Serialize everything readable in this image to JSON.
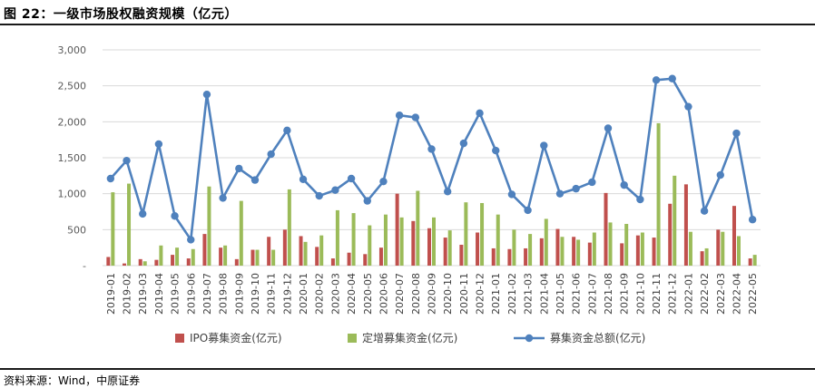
{
  "figure_title": "图 22：一级市场股权融资规模（亿元）",
  "source": "资料来源：Wind，中原证券",
  "chart_data": {
    "type": "bar",
    "categories": [
      "2019-01",
      "2019-02",
      "2019-03",
      "2019-04",
      "2019-05",
      "2019-06",
      "2019-07",
      "2019-08",
      "2019-09",
      "2019-10",
      "2019-11",
      "2019-12",
      "2020-01",
      "2020-02",
      "2020-03",
      "2020-04",
      "2020-05",
      "2020-06",
      "2020-07",
      "2020-08",
      "2020-09",
      "2020-10",
      "2020-11",
      "2020-12",
      "2021-01",
      "2021-02",
      "2021-03",
      "2021-04",
      "2021-05",
      "2021-06",
      "2021-07",
      "2021-08",
      "2021-09",
      "2021-10",
      "2021-11",
      "2021-12",
      "2022-01",
      "2022-02",
      "2022-03",
      "2022-04",
      "2022-05"
    ],
    "series": [
      {
        "name": "IPO募集资金(亿元)",
        "kind": "bar",
        "color": "#c0504d",
        "values": [
          120,
          30,
          90,
          80,
          150,
          100,
          440,
          250,
          90,
          220,
          400,
          500,
          410,
          260,
          100,
          180,
          160,
          250,
          1000,
          620,
          520,
          390,
          290,
          460,
          240,
          230,
          240,
          380,
          510,
          400,
          320,
          1010,
          310,
          420,
          390,
          860,
          1130,
          200,
          500,
          830,
          100
        ]
      },
      {
        "name": "定增募集资金(亿元)",
        "kind": "bar",
        "color": "#9bbb59",
        "values": [
          1020,
          1140,
          60,
          280,
          250,
          230,
          1100,
          280,
          900,
          220,
          220,
          1060,
          330,
          420,
          770,
          730,
          560,
          710,
          670,
          1040,
          670,
          490,
          880,
          870,
          710,
          500,
          440,
          650,
          400,
          360,
          460,
          600,
          580,
          460,
          1980,
          1250,
          470,
          240,
          470,
          410,
          150
        ]
      },
      {
        "name": "募集资金总额(亿元)",
        "kind": "line",
        "color": "#4f81bd",
        "values": [
          1210,
          1460,
          720,
          1690,
          690,
          360,
          2380,
          940,
          1350,
          1190,
          1550,
          1880,
          1200,
          970,
          1050,
          1210,
          900,
          1170,
          2090,
          2060,
          1620,
          1030,
          1700,
          2120,
          1600,
          990,
          770,
          1670,
          1000,
          1070,
          1160,
          1910,
          1120,
          920,
          2580,
          2600,
          2210,
          760,
          1260,
          1840,
          640
        ]
      }
    ],
    "ylim": [
      0,
      3000
    ],
    "yticks": [
      "-",
      "500",
      "1,000",
      "1,500",
      "2,000",
      "2,500",
      "3,000"
    ],
    "legend_position": "bottom",
    "grid": true
  }
}
